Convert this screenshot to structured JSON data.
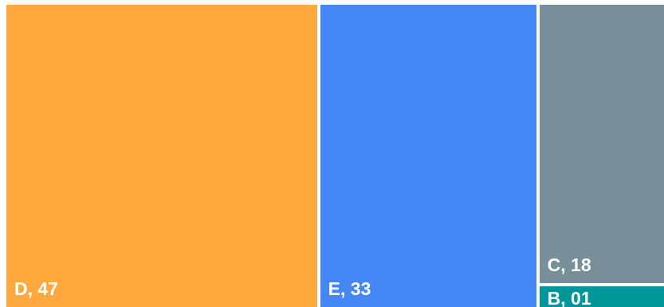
{
  "chart_data": {
    "type": "treemap",
    "title": "",
    "items": [
      {
        "name": "D",
        "value": 47,
        "label": "D, 47",
        "color": "#FFA83D"
      },
      {
        "name": "E",
        "value": 33,
        "label": "E, 33",
        "color": "#4386F4"
      },
      {
        "name": "C",
        "value": 18,
        "label": "C, 18",
        "color": "#788F9A"
      },
      {
        "name": "B",
        "value": 1,
        "label": "B, 01",
        "color": "#00969A"
      }
    ],
    "legend": false,
    "grid": false
  }
}
